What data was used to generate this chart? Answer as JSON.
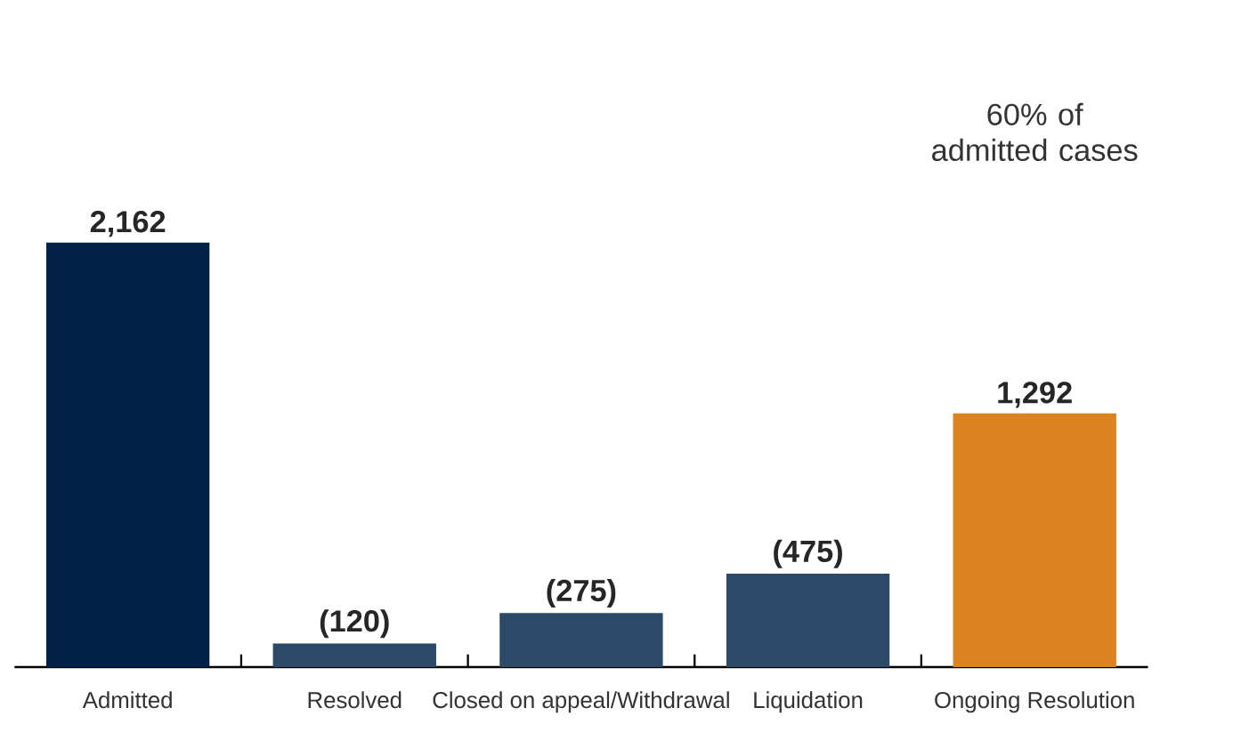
{
  "chart_data": {
    "type": "bar",
    "categories": [
      "Admitted",
      "Resolved",
      "Closed on appeal/Withdrawal",
      "Liquidation",
      "Ongoing Resolution"
    ],
    "values": [
      2162,
      120,
      275,
      475,
      1292
    ],
    "value_labels": [
      "2,162",
      "(120)",
      "(275)",
      "(475)",
      "1,292"
    ],
    "colors": [
      "#022147",
      "#2c4a68",
      "#2c4a68",
      "#2c4a68",
      "#dc8220"
    ],
    "tick_labels": "x",
    "annotations": [
      "60% of admitted cases"
    ]
  }
}
